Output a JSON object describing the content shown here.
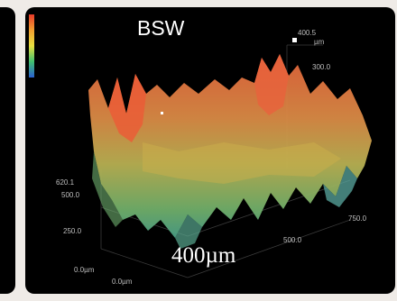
{
  "title": "BSW",
  "scale_bar_label": "400µm",
  "axis_ticks": {
    "z_top": "620.1",
    "z_500": "500.0",
    "y_250": "250.0",
    "y_500": "500.0",
    "x_750": "750.0",
    "origin_left": "0.0µm",
    "origin_bottom": "0.0µm",
    "corner": "400.5",
    "corner_unit": "µm",
    "corner_300": "300.0"
  },
  "colors": {
    "background": "#000000",
    "page": "#efebe7",
    "surface_high": "#e06a3a",
    "surface_mid": "#c9a54a",
    "surface_low": "#5aaa7a"
  },
  "legend_icon": "color-scale-bar"
}
